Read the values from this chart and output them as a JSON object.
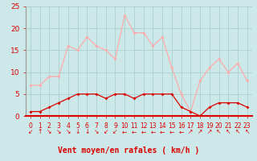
{
  "xlabel": "Vent moyen/en rafales ( km/h )",
  "hours": [
    0,
    1,
    2,
    3,
    4,
    5,
    6,
    7,
    8,
    9,
    10,
    11,
    12,
    13,
    14,
    15,
    16,
    17,
    18,
    19,
    20,
    21,
    22,
    23
  ],
  "rafales": [
    7,
    7,
    9,
    9,
    16,
    15,
    18,
    16,
    15,
    13,
    23,
    19,
    19,
    16,
    18,
    11,
    5,
    1,
    8,
    11,
    13,
    10,
    12,
    8
  ],
  "moyen": [
    1,
    1,
    2,
    3,
    4,
    5,
    5,
    5,
    4,
    5,
    5,
    4,
    5,
    5,
    5,
    5,
    2,
    1,
    0,
    2,
    3,
    3,
    3,
    2
  ],
  "color_rafales": "#ffaaaa",
  "color_moyen": "#dd0000",
  "bg_color": "#cce8e8",
  "grid_color": "#aad0d0",
  "tick_color": "#dd0000",
  "label_color": "#dd0000",
  "ylim": [
    0,
    25
  ],
  "yticks": [
    0,
    5,
    10,
    15,
    20,
    25
  ],
  "arrow_chars": [
    "↙",
    "↑",
    "↘",
    "↘",
    "↘",
    "↓",
    "↓",
    "↘",
    "↙",
    "↙",
    "←",
    "←",
    "←",
    "←",
    "←",
    "←",
    "←",
    "↗",
    "↗",
    "↗",
    "↖",
    "↖",
    "↖",
    "↖"
  ]
}
